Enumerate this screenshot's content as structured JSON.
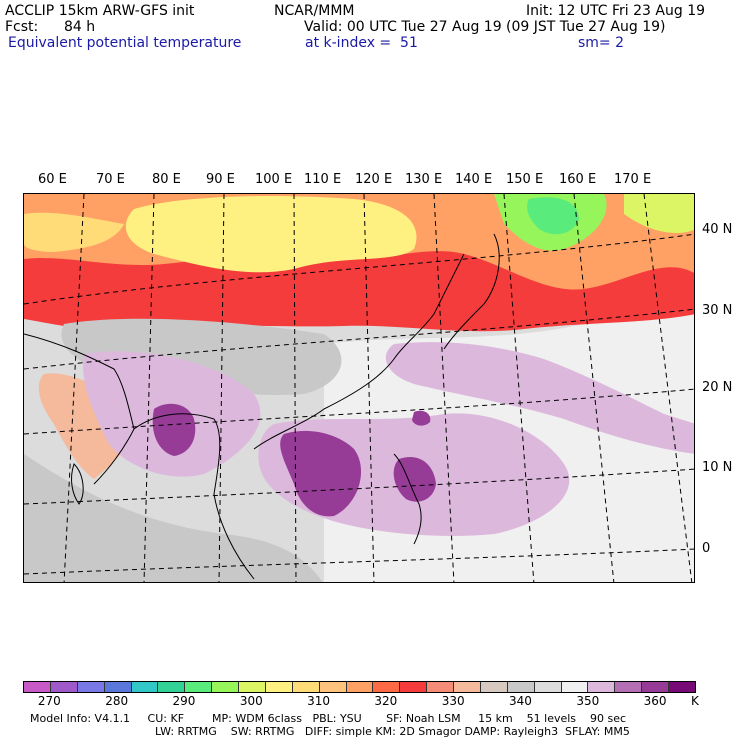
{
  "header": {
    "model": "ACCLIP 15km ARW-GFS init",
    "org": "NCAR/MMM",
    "init": "Init: 12 UTC Fri 23 Aug 19",
    "fcst_label": "Fcst:",
    "fcst_value": "84 h",
    "valid": "Valid: 00 UTC Tue 27 Aug 19 (09 JST Tue 27 Aug 19)",
    "field": "Equivalent potential temperature",
    "level": "at k-index =  51",
    "smooth": "sm= 2"
  },
  "map": {
    "lon_labels": [
      "60 E",
      "70 E",
      "80 E",
      "90 E",
      "100 E",
      "110 E",
      "120 E",
      "130 E",
      "140 E",
      "150 E",
      "160 E",
      "170 E"
    ],
    "lat_labels": [
      "40 N",
      "30 N",
      "20 N",
      "10 N",
      "0"
    ]
  },
  "colorbar": {
    "colors": [
      "#c85ac8",
      "#9e5ac8",
      "#7878e6",
      "#5a78dc",
      "#32c8c8",
      "#32d296",
      "#5aeb7d",
      "#96f55a",
      "#dcf564",
      "#fff082",
      "#ffdc78",
      "#ffc37d",
      "#ffa064",
      "#ff6a46",
      "#f53c3c",
      "#f58c78",
      "#f5b99b",
      "#d7c8c0",
      "#c8c8c8",
      "#dcdcdc",
      "#f0f0f0",
      "#dcb9dc",
      "#b46eb4",
      "#963c96",
      "#780a78"
    ],
    "labels": [
      "270",
      "280",
      "290",
      "300",
      "310",
      "320",
      "330",
      "340",
      "350",
      "360"
    ],
    "unit": "K"
  },
  "model_info": {
    "line1": "Model Info: V4.1.1     CU: KF        MP: WDM 6class   PBL: YSU       SF: Noah LSM     15 km    51 levels    90 sec",
    "line2": "LW: RRTMG    SW: RRTMG   DIFF: simple KM: 2D Smagor DAMP: Rayleigh3  SFLAY: MM5"
  }
}
